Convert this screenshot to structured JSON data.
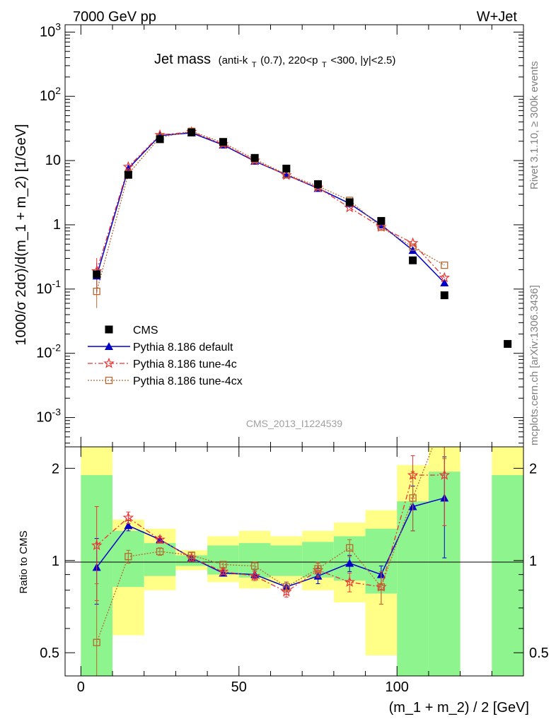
{
  "header": {
    "left_title": "7000 GeV pp",
    "right_title": "W+Jet"
  },
  "side_labels": {
    "rivet": "Rivet 3.1.10, ≥ 300k events",
    "mcplots": "mcplots.cern.ch [arXiv:1306.3436]"
  },
  "watermark": "CMS_2013_I1224539",
  "colors": {
    "cms": "#000000",
    "default": "#0000cc",
    "tune4c": "#ee3333",
    "tune4cx": "#b8672e",
    "band_green": "#8ef58e",
    "band_yellow": "#ffff88"
  },
  "chart_data": [
    {
      "type": "scatter",
      "title": "Jet mass",
      "title_suffix": "(anti-k",
      "title_sub1": "T",
      "title_mid": "(0.7), 220<p",
      "title_sub2": "T",
      "title_end": "<300, |y|<2.5)",
      "ylabel": "1000/σ 2dσ)/d(m_1 + m_2) [1/GeV]",
      "yscale": "log",
      "ylim": [
        0.00035,
        1300
      ],
      "xlim": [
        -5,
        140
      ],
      "y_tick_labels": [
        "10^-3",
        "10^-2",
        "10^-1",
        "1",
        "10",
        "10^2",
        "10^3"
      ],
      "legend_position": "middle-left",
      "series": [
        {
          "name": "CMS",
          "marker": "square",
          "x": [
            5,
            15,
            25,
            35,
            45,
            55,
            65,
            75,
            85,
            95,
            105,
            115,
            135
          ],
          "y": [
            0.17,
            6.0,
            21.5,
            27.5,
            19.5,
            11.0,
            7.5,
            4.3,
            2.25,
            1.15,
            0.28,
            0.08,
            0.014
          ]
        },
        {
          "name": "Pythia 8.186 default",
          "marker": "triangle",
          "x": [
            5,
            15,
            25,
            35,
            45,
            55,
            65,
            75,
            85,
            95,
            105,
            115
          ],
          "y": [
            0.16,
            7.5,
            24.5,
            27.0,
            17.5,
            9.8,
            6.0,
            3.7,
            2.15,
            1.0,
            0.4,
            0.125
          ]
        },
        {
          "name": "Pythia 8.186 tune-4c",
          "marker": "star",
          "x": [
            5,
            15,
            25,
            35,
            45,
            55,
            65,
            75,
            85,
            95,
            105,
            115
          ],
          "y": [
            0.19,
            8.0,
            25.0,
            28.0,
            18.0,
            10.0,
            5.9,
            3.8,
            1.85,
            0.92,
            0.52,
            0.15
          ]
        },
        {
          "name": "Pythia 8.186 tune-4cx",
          "marker": "open-square",
          "x": [
            5,
            15,
            25,
            35,
            45,
            55,
            65,
            75,
            85,
            95,
            105,
            115
          ],
          "y": [
            0.092,
            6.2,
            23.0,
            28.5,
            19.0,
            10.5,
            6.1,
            4.0,
            2.4,
            0.92,
            0.45,
            0.235
          ]
        }
      ]
    },
    {
      "type": "line",
      "ylabel": "Ratio to CMS",
      "xlabel": "(m_1 + m_2) / 2 [GeV]",
      "yscale": "log",
      "ylim": [
        0.42,
        2.35
      ],
      "xlim": [
        -5,
        140
      ],
      "x_tick_labels": [
        "0",
        "50",
        "100"
      ],
      "y_tick_labels": [
        "0.5",
        "1",
        "2"
      ],
      "bands": [
        {
          "x0": 0,
          "x1": 10,
          "green": [
            0.3,
            1.9
          ],
          "yellow": [
            0.3,
            2.6
          ]
        },
        {
          "x0": 10,
          "x1": 20,
          "green": [
            0.82,
            1.25
          ],
          "yellow": [
            0.57,
            1.36
          ]
        },
        {
          "x0": 20,
          "x1": 30,
          "green": [
            0.89,
            1.14
          ],
          "yellow": [
            0.8,
            1.27
          ]
        },
        {
          "x0": 30,
          "x1": 40,
          "green": [
            0.96,
            1.04
          ],
          "yellow": [
            0.93,
            1.08
          ]
        },
        {
          "x0": 40,
          "x1": 50,
          "green": [
            0.9,
            1.12
          ],
          "yellow": [
            0.85,
            1.2
          ]
        },
        {
          "x0": 50,
          "x1": 60,
          "green": [
            0.88,
            1.14
          ],
          "yellow": [
            0.81,
            1.25
          ]
        },
        {
          "x0": 60,
          "x1": 70,
          "green": [
            0.89,
            1.12
          ],
          "yellow": [
            0.84,
            1.2
          ]
        },
        {
          "x0": 70,
          "x1": 80,
          "green": [
            0.88,
            1.15
          ],
          "yellow": [
            0.8,
            1.25
          ]
        },
        {
          "x0": 80,
          "x1": 90,
          "green": [
            0.86,
            1.2
          ],
          "yellow": [
            0.73,
            1.33
          ]
        },
        {
          "x0": 90,
          "x1": 100,
          "green": [
            0.78,
            1.27
          ],
          "yellow": [
            0.49,
            1.46
          ]
        },
        {
          "x0": 100,
          "x1": 110,
          "green": [
            0.3,
            1.56
          ],
          "yellow": [
            0.3,
            2.05
          ]
        },
        {
          "x0": 110,
          "x1": 120,
          "green": [
            0.3,
            1.95
          ],
          "yellow": [
            0.3,
            2.6
          ]
        },
        {
          "x0": 130,
          "x1": 140,
          "green": [
            0.3,
            1.9
          ],
          "yellow": [
            0.3,
            2.6
          ]
        }
      ],
      "series": [
        {
          "name": "Pythia 8.186 default",
          "x": [
            5,
            15,
            25,
            35,
            45,
            55,
            65,
            75,
            85,
            95,
            105,
            115
          ],
          "y": [
            0.95,
            1.3,
            1.17,
            1.02,
            0.91,
            0.9,
            0.82,
            0.89,
            0.98,
            0.9,
            1.5,
            1.6
          ],
          "err": [
            0.23,
            0.05,
            0.03,
            0.02,
            0.02,
            0.03,
            0.03,
            0.05,
            0.06,
            0.06,
            0.25,
            0.58
          ]
        },
        {
          "name": "Pythia 8.186 tune-4c",
          "x": [
            5,
            15,
            25,
            35,
            45,
            55,
            65,
            75,
            85,
            95,
            105,
            115
          ],
          "y": [
            1.12,
            1.38,
            1.17,
            1.02,
            0.92,
            0.89,
            0.79,
            0.93,
            0.85,
            0.82,
            1.9,
            1.9
          ],
          "err": [
            0.38,
            0.06,
            0.03,
            0.02,
            0.02,
            0.03,
            0.03,
            0.05,
            0.06,
            0.1,
            0.3,
            0.6
          ]
        },
        {
          "name": "Pythia 8.186 tune-4cx",
          "x": [
            5,
            15,
            25,
            35,
            45,
            55,
            65,
            75,
            85,
            95,
            105,
            115
          ],
          "y": [
            0.54,
            1.03,
            1.07,
            1.04,
            0.97,
            0.96,
            0.82,
            0.94,
            1.1,
            0.82,
            1.6,
            2.95
          ],
          "err": [
            0.3,
            0.05,
            0.03,
            0.02,
            0.02,
            0.03,
            0.03,
            0.05,
            0.07,
            0.1,
            0.35,
            0.8
          ]
        }
      ]
    }
  ]
}
